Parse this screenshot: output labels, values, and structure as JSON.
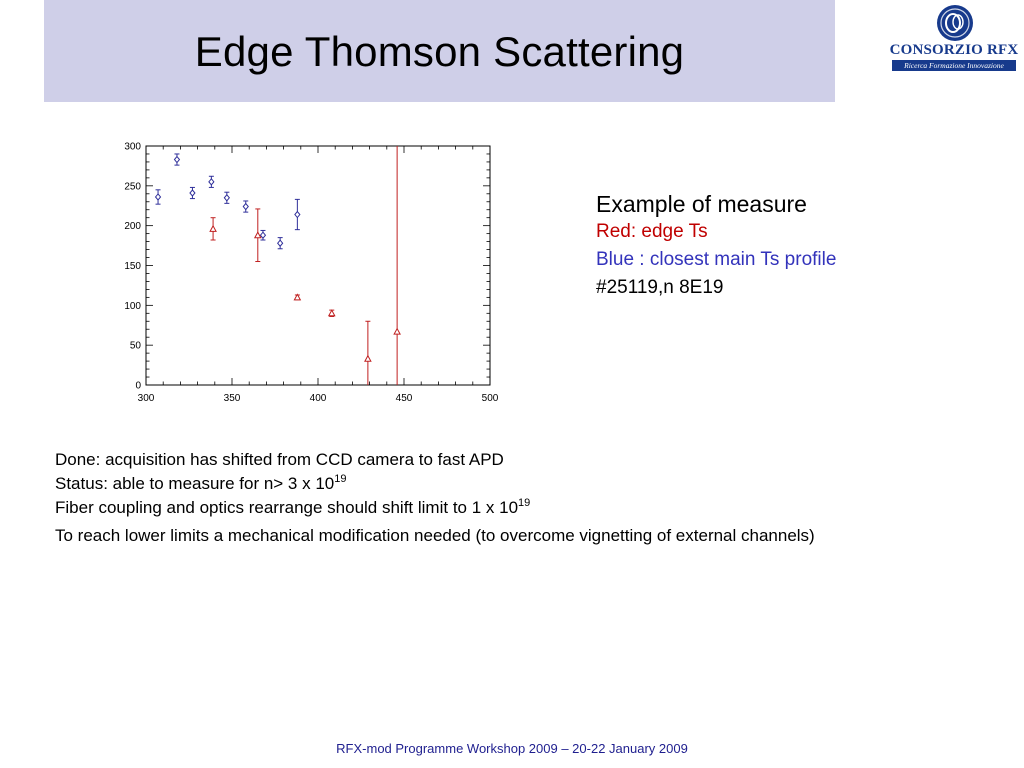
{
  "slide": {
    "title": "Edge Thomson Scattering",
    "footer": "RFX-mod Programme Workshop 2009 – 20-22 January 2009"
  },
  "logo": {
    "name": "CONSORZIO RFX",
    "tagline": "Ricerca Formazione Innovazione",
    "color": "#173a8c"
  },
  "legend_text": {
    "line1": "Example of measure",
    "line2": "Red: edge Ts",
    "line3": "Blue : closest main Ts profile",
    "line4": "#25119,n 8E19"
  },
  "notes": {
    "line1": "Done: acquisition has shifted from CCD camera to fast APD",
    "line2_main": "Status: able to measure for n> 3 x 10",
    "line2_exp": "19",
    "line3_main": "Fiber coupling and optics rearrange should shift limit to 1 x 10",
    "line3_exp": "19",
    "line4": "To reach lower limits a mechanical modification needed (to overcome vignetting of external channels)"
  },
  "chart_data": {
    "type": "scatter",
    "xlim": [
      300,
      500
    ],
    "ylim": [
      0,
      300
    ],
    "xticks": [
      300,
      350,
      400,
      450,
      500
    ],
    "yticks": [
      0,
      50,
      100,
      150,
      200,
      250,
      300
    ],
    "series": [
      {
        "color": "#2f2f9a",
        "marker": "diamond",
        "points": [
          {
            "x": 307,
            "y": 236,
            "err": 9
          },
          {
            "x": 318,
            "y": 283,
            "err": 7
          },
          {
            "x": 327,
            "y": 241,
            "err": 7
          },
          {
            "x": 338,
            "y": 255,
            "err": 7
          },
          {
            "x": 347,
            "y": 235,
            "err": 7
          },
          {
            "x": 358,
            "y": 224,
            "err": 7
          },
          {
            "x": 368,
            "y": 188,
            "err": 6
          },
          {
            "x": 378,
            "y": 178,
            "err": 7
          },
          {
            "x": 388,
            "y": 214,
            "err": 19
          }
        ]
      },
      {
        "color": "#c02020",
        "marker": "triangle",
        "points": [
          {
            "x": 339,
            "y": 196,
            "err": 14
          },
          {
            "x": 365,
            "y": 188,
            "err": 33
          },
          {
            "x": 388,
            "y": 110,
            "err": 3
          },
          {
            "x": 408,
            "y": 90,
            "err": 4
          },
          {
            "x": 429,
            "y": 33,
            "err": 47
          },
          {
            "x": 446,
            "y": 67,
            "err": 233
          }
        ]
      }
    ]
  }
}
